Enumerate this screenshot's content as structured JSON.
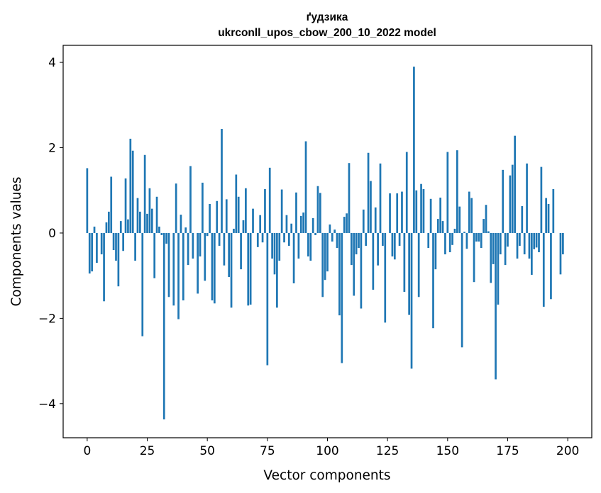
{
  "chart_data": {
    "type": "bar",
    "title": "ґудзика",
    "subtitle": "ukrconll_upos_cbow_200_10_2022 model",
    "xlabel": "Vector components",
    "ylabel": "Components values",
    "xlim": [
      -10,
      210
    ],
    "ylim": [
      -4.8,
      4.4
    ],
    "x_ticks": [
      0,
      25,
      50,
      75,
      100,
      125,
      150,
      175,
      200
    ],
    "x_tick_labels": [
      "0",
      "25",
      "50",
      "75",
      "100",
      "125",
      "150",
      "175",
      "200"
    ],
    "y_ticks": [
      -4,
      -2,
      0,
      2,
      4
    ],
    "y_tick_labels": [
      "−4",
      "−2",
      "0",
      "2",
      "4"
    ],
    "grid": false,
    "legend": "none",
    "bar_color": "#1f77b4",
    "values": [
      1.52,
      -0.95,
      -0.9,
      0.15,
      -0.7,
      0.0,
      -0.5,
      -1.6,
      0.25,
      0.5,
      1.32,
      -0.4,
      -0.65,
      -1.25,
      0.28,
      -0.42,
      1.28,
      0.32,
      2.21,
      1.93,
      -0.65,
      0.82,
      0.5,
      -2.42,
      1.83,
      0.45,
      1.05,
      0.57,
      -1.06,
      0.85,
      0.15,
      -0.05,
      -4.37,
      -0.25,
      -1.5,
      0.0,
      -1.7,
      1.16,
      -2.02,
      0.43,
      -1.58,
      0.13,
      -0.75,
      1.57,
      -0.6,
      0.0,
      -1.42,
      -0.55,
      1.18,
      -1.12,
      -0.07,
      0.68,
      -1.58,
      -1.65,
      0.75,
      -0.3,
      2.44,
      -0.76,
      0.79,
      -1.03,
      -1.75,
      0.1,
      1.37,
      0.85,
      -0.85,
      0.3,
      1.05,
      -1.7,
      -1.68,
      0.57,
      0.0,
      -0.33,
      0.42,
      -0.22,
      1.03,
      -3.1,
      1.53,
      -0.6,
      -0.97,
      -1.75,
      -0.65,
      1.02,
      -0.22,
      0.42,
      -0.3,
      0.22,
      -1.18,
      0.95,
      -0.6,
      0.4,
      0.48,
      2.15,
      -0.55,
      -0.65,
      0.35,
      -0.05,
      1.1,
      0.94,
      -1.5,
      -1.1,
      -0.9,
      0.2,
      -0.2,
      0.08,
      -0.35,
      -1.93,
      -3.05,
      0.38,
      0.46,
      1.64,
      -0.75,
      -1.47,
      -0.5,
      -0.35,
      -1.77,
      0.55,
      -0.3,
      1.88,
      1.22,
      -1.33,
      0.6,
      -0.76,
      1.63,
      -0.3,
      -2.1,
      0.0,
      0.93,
      -0.55,
      -0.62,
      0.93,
      -0.3,
      0.97,
      -1.38,
      1.9,
      -1.92,
      -3.18,
      3.9,
      1.0,
      -1.5,
      1.15,
      1.03,
      0.0,
      -0.35,
      0.8,
      -2.23,
      -0.85,
      0.33,
      0.83,
      0.28,
      -0.5,
      1.9,
      -0.45,
      -0.28,
      0.1,
      1.94,
      0.62,
      -2.68,
      0.03,
      -0.37,
      0.97,
      0.82,
      -1.15,
      -0.2,
      -0.2,
      -0.35,
      0.33,
      0.66,
      0.04,
      -1.17,
      -0.73,
      -3.43,
      -1.68,
      -0.5,
      1.48,
      -0.75,
      -0.32,
      1.35,
      1.6,
      2.28,
      -0.6,
      -0.3,
      0.63,
      -0.5,
      1.63,
      -0.6,
      -0.98,
      -0.38,
      -0.34,
      -0.45,
      1.55,
      -1.73,
      0.82,
      0.68,
      -1.55,
      1.03,
      0.0,
      0.0,
      -0.97,
      -0.5
    ]
  }
}
